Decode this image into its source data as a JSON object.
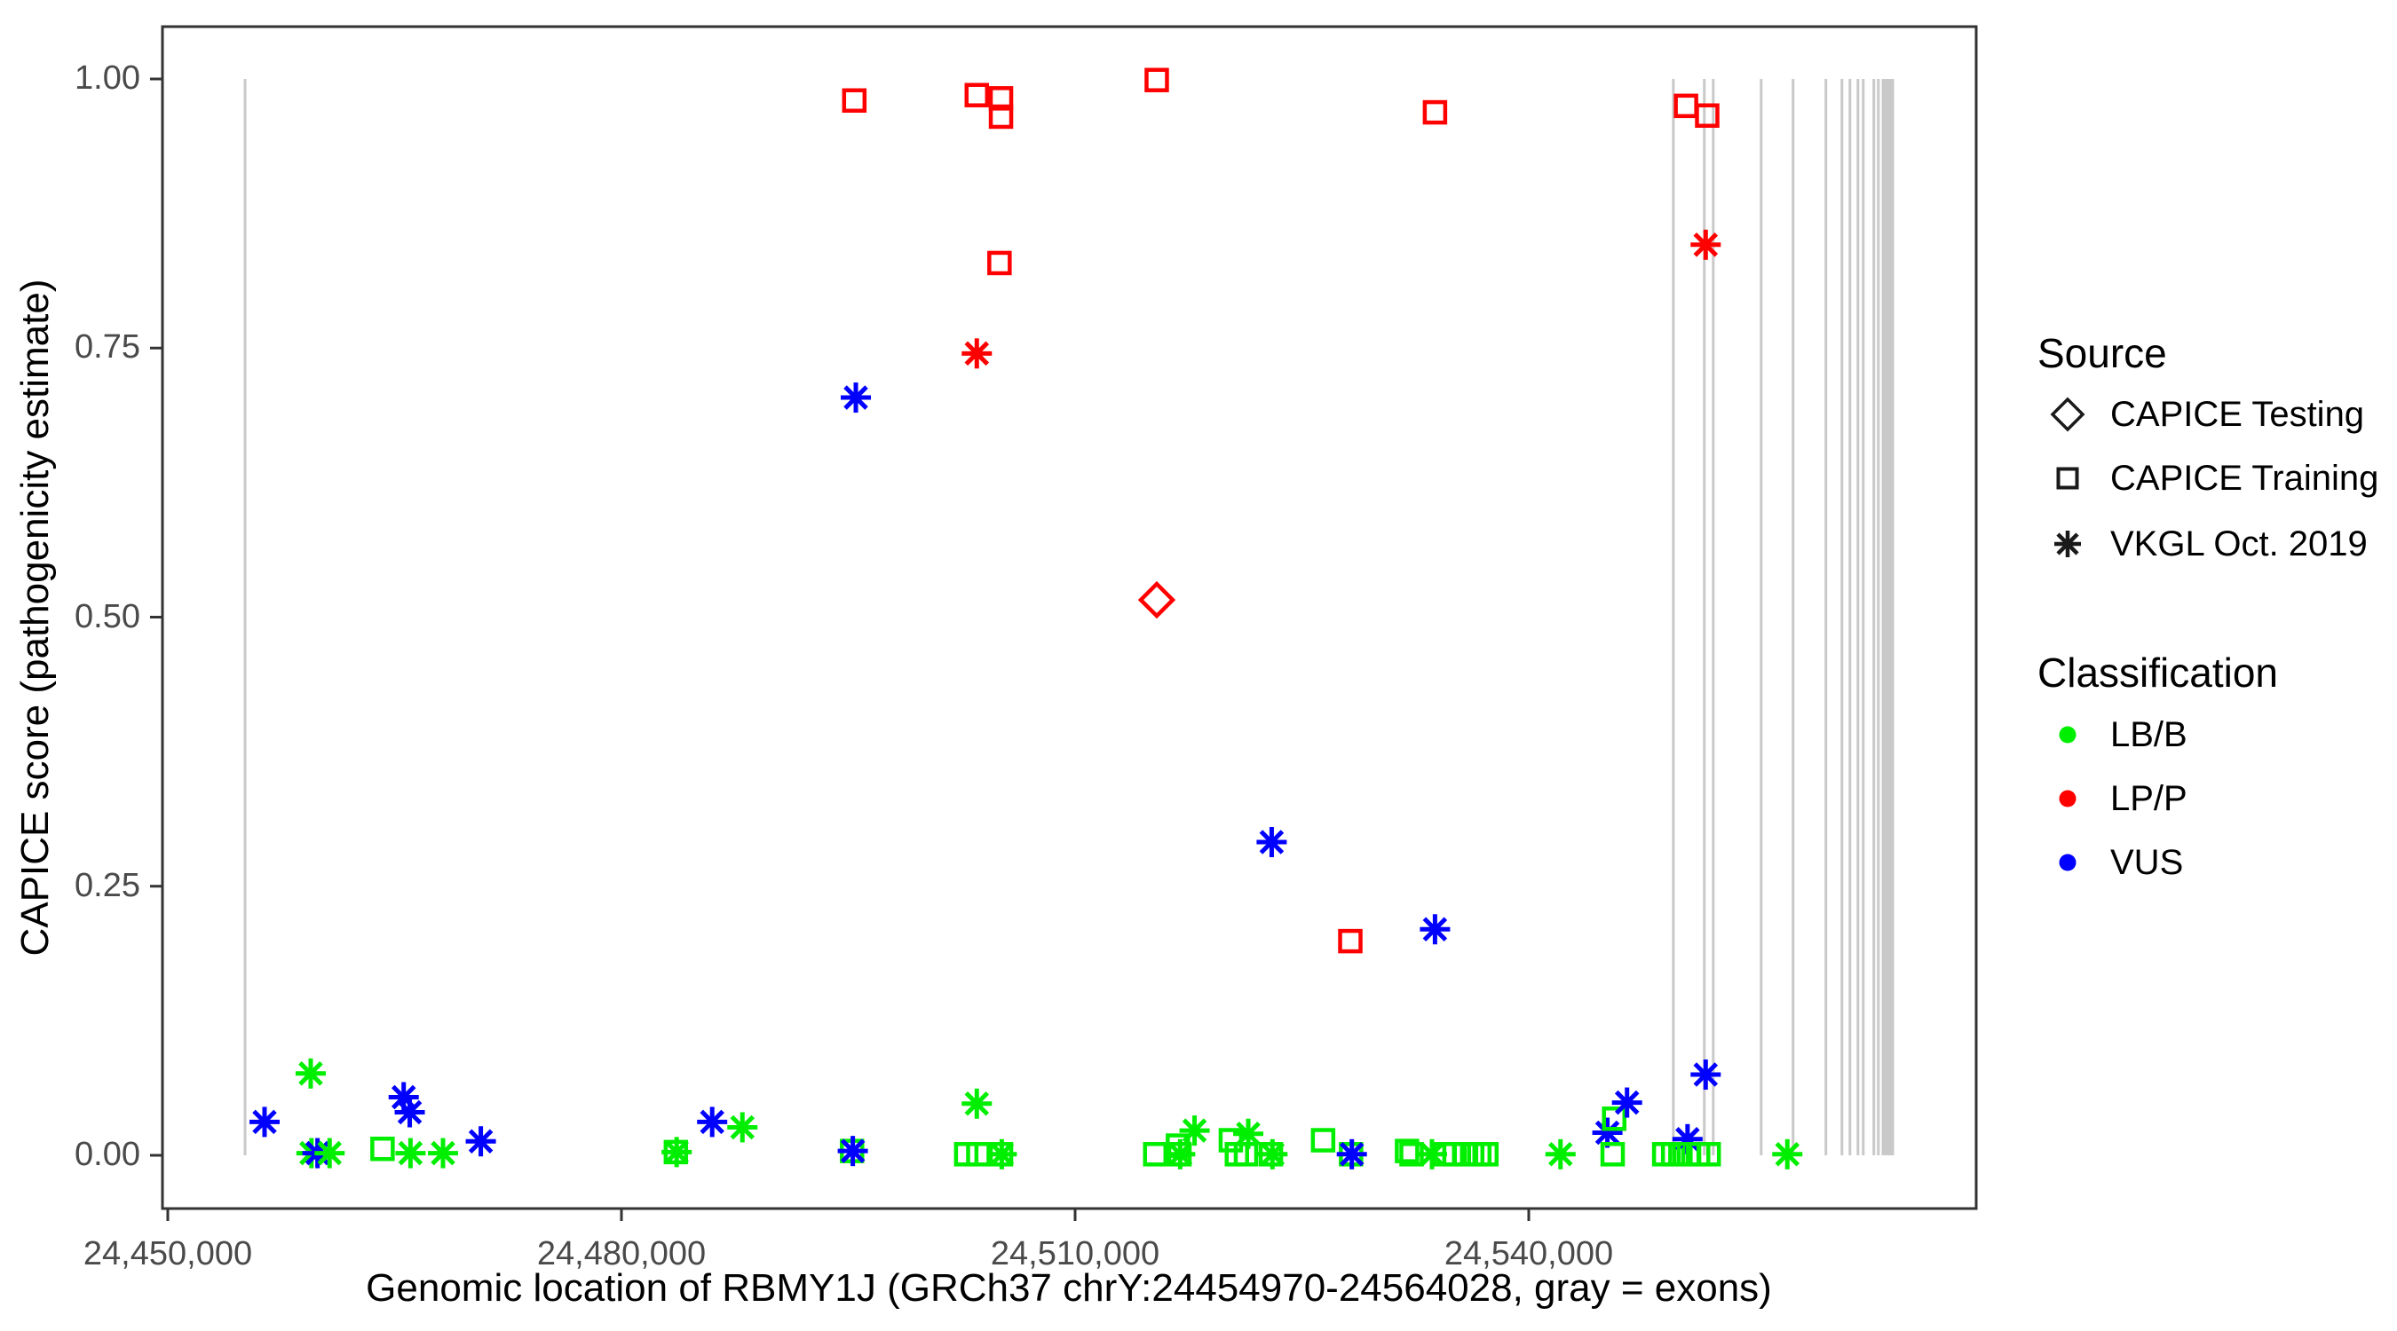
{
  "figure": {
    "x_axis_title": "Genomic location of RBMY1J (GRCh37 chrY:24454970-24564028, gray = exons)",
    "y_axis_title": "CAPICE score (pathogenicity estimate)"
  },
  "legend": {
    "source": {
      "title": "Source",
      "items": [
        {
          "key": "testing",
          "label": "CAPICE Testing",
          "symbol": "diamond-icon"
        },
        {
          "key": "training",
          "label": "CAPICE Training",
          "symbol": "square-icon"
        },
        {
          "key": "vkgl",
          "label": "VKGL Oct. 2019",
          "symbol": "asterisk-icon"
        }
      ]
    },
    "classification": {
      "title": "Classification",
      "items": [
        {
          "key": "LB/B",
          "label": "LB/B",
          "color": "#00EE00"
        },
        {
          "key": "LP/P",
          "label": "LP/P",
          "color": "#FF0000"
        },
        {
          "key": "VUS",
          "label": "VUS",
          "color": "#0000FF"
        }
      ]
    }
  },
  "chart_data": {
    "type": "scatter",
    "title": "",
    "xlabel": "Genomic location of RBMY1J (GRCh37 chrY:24454970-24564028, gray = exons)",
    "ylabel": "CAPICE score (pathogenicity estimate)",
    "x_range": [
      24449600,
      24569400
    ],
    "y_range": [
      0.0,
      1.0
    ],
    "x_ticks": [
      {
        "value": 24450000,
        "label": "24,450,000"
      },
      {
        "value": 24480000,
        "label": "24,480,000"
      },
      {
        "value": 24510000,
        "label": "24,510,000"
      },
      {
        "value": 24540000,
        "label": "24,540,000"
      }
    ],
    "y_ticks": [
      {
        "value": 0.0,
        "label": "0.00"
      },
      {
        "value": 0.25,
        "label": "0.25"
      },
      {
        "value": 0.5,
        "label": "0.50"
      },
      {
        "value": 0.75,
        "label": "0.75"
      },
      {
        "value": 1.0,
        "label": "1.00"
      }
    ],
    "grid": "off",
    "legend_position": "right",
    "exon_color": "#C9C9C9",
    "exons_thin": [
      24455110,
      24549560,
      24551610,
      24552200,
      24555370,
      24557480,
      24559650,
      24560710,
      24561240,
      24561770,
      24562120,
      24562820,
      24563120
    ],
    "exon_band": {
      "start": 24563340,
      "end": 24564160
    },
    "point_format": [
      "genomic_position",
      "capice_score",
      "classification",
      "source"
    ],
    "points": [
      [
        24456400,
        0.031,
        "VUS",
        "vkgl"
      ],
      [
        24459450,
        0.076,
        "LB/B",
        "vkgl"
      ],
      [
        24459500,
        0.002,
        "LB/B",
        "vkgl"
      ],
      [
        24459900,
        0.002,
        "VUS",
        "vkgl"
      ],
      [
        24460700,
        0.002,
        "LB/B",
        "vkgl"
      ],
      [
        24464200,
        0.006,
        "LB/B",
        "training"
      ],
      [
        24465600,
        0.054,
        "VUS",
        "vkgl"
      ],
      [
        24466000,
        0.04,
        "VUS",
        "vkgl"
      ],
      [
        24466050,
        0.002,
        "LB/B",
        "vkgl"
      ],
      [
        24468200,
        0.002,
        "LB/B",
        "vkgl"
      ],
      [
        24470700,
        0.013,
        "VUS",
        "vkgl"
      ],
      [
        24483600,
        0.003,
        "LB/B",
        "training"
      ],
      [
        24483650,
        0.003,
        "LB/B",
        "vkgl"
      ],
      [
        24486000,
        0.031,
        "VUS",
        "vkgl"
      ],
      [
        24488000,
        0.026,
        "LB/B",
        "vkgl"
      ],
      [
        24495250,
        0.004,
        "LB/B",
        "training"
      ],
      [
        24495300,
        0.004,
        "VUS",
        "vkgl"
      ],
      [
        24495400,
        0.98,
        "LP/P",
        "training"
      ],
      [
        24495500,
        0.704,
        "VUS",
        "vkgl"
      ],
      [
        24502800,
        0.001,
        "LB/B",
        "training"
      ],
      [
        24503500,
        0.985,
        "LP/P",
        "training"
      ],
      [
        24503500,
        0.745,
        "LP/P",
        "vkgl"
      ],
      [
        24503500,
        0.048,
        "LB/B",
        "vkgl"
      ],
      [
        24503600,
        0.001,
        "LB/B",
        "training"
      ],
      [
        24505000,
        0.829,
        "LP/P",
        "training"
      ],
      [
        24505100,
        0.982,
        "LP/P",
        "training"
      ],
      [
        24505100,
        0.965,
        "LP/P",
        "training"
      ],
      [
        24505100,
        0.001,
        "LB/B",
        "training"
      ],
      [
        24505150,
        0.001,
        "LB/B",
        "vkgl"
      ],
      [
        24515300,
        0.001,
        "LB/B",
        "training"
      ],
      [
        24515400,
        0.999,
        "LP/P",
        "training"
      ],
      [
        24515400,
        0.516,
        "LP/P",
        "testing"
      ],
      [
        24516800,
        0.009,
        "LB/B",
        "training"
      ],
      [
        24516900,
        0.001,
        "LB/B",
        "training"
      ],
      [
        24516950,
        0.001,
        "LB/B",
        "vkgl"
      ],
      [
        24517900,
        0.023,
        "LB/B",
        "vkgl"
      ],
      [
        24520300,
        0.014,
        "LB/B",
        "training"
      ],
      [
        24520700,
        0.001,
        "LB/B",
        "training"
      ],
      [
        24521300,
        0.001,
        "LB/B",
        "training"
      ],
      [
        24521450,
        0.02,
        "LB/B",
        "vkgl"
      ],
      [
        24522950,
        0.001,
        "LB/B",
        "training"
      ],
      [
        24523050,
        0.001,
        "LB/B",
        "vkgl"
      ],
      [
        24523000,
        0.291,
        "VUS",
        "vkgl"
      ],
      [
        24526400,
        0.014,
        "LB/B",
        "training"
      ],
      [
        24528200,
        0.199,
        "LP/P",
        "training"
      ],
      [
        24528250,
        0.001,
        "LB/B",
        "training"
      ],
      [
        24528300,
        0.001,
        "VUS",
        "vkgl"
      ],
      [
        24531950,
        0.004,
        "LB/B",
        "training"
      ],
      [
        24532250,
        0.001,
        "LB/B",
        "training"
      ],
      [
        24533600,
        0.001,
        "LB/B",
        "vkgl"
      ],
      [
        24533800,
        0.21,
        "VUS",
        "vkgl"
      ],
      [
        24533800,
        0.969,
        "LP/P",
        "training"
      ],
      [
        24534440,
        0.001,
        "LB/B",
        "training"
      ],
      [
        24535090,
        0.001,
        "LB/B",
        "training"
      ],
      [
        24535730,
        0.001,
        "LB/B",
        "training"
      ],
      [
        24536260,
        0.001,
        "LB/B",
        "training"
      ],
      [
        24536730,
        0.001,
        "LB/B",
        "training"
      ],
      [
        24537200,
        0.001,
        "LB/B",
        "training"
      ],
      [
        24542100,
        0.001,
        "LB/B",
        "vkgl"
      ],
      [
        24545200,
        0.021,
        "VUS",
        "vkgl"
      ],
      [
        24545550,
        0.001,
        "LB/B",
        "training"
      ],
      [
        24545650,
        0.034,
        "LB/B",
        "training"
      ],
      [
        24546500,
        0.049,
        "VUS",
        "vkgl"
      ],
      [
        24548960,
        0.001,
        "LB/B",
        "training"
      ],
      [
        24549550,
        0.001,
        "LB/B",
        "training"
      ],
      [
        24550030,
        0.001,
        "LB/B",
        "training"
      ],
      [
        24550400,
        0.975,
        "LP/P",
        "training"
      ],
      [
        24550500,
        0.015,
        "VUS",
        "vkgl"
      ],
      [
        24550600,
        0.001,
        "LB/B",
        "training"
      ],
      [
        24551200,
        0.001,
        "LB/B",
        "training"
      ],
      [
        24551700,
        0.846,
        "LP/P",
        "vkgl"
      ],
      [
        24551700,
        0.075,
        "VUS",
        "vkgl"
      ],
      [
        24551800,
        0.966,
        "LP/P",
        "training"
      ],
      [
        24551900,
        0.001,
        "LB/B",
        "training"
      ],
      [
        24557100,
        0.001,
        "LB/B",
        "vkgl"
      ]
    ]
  }
}
